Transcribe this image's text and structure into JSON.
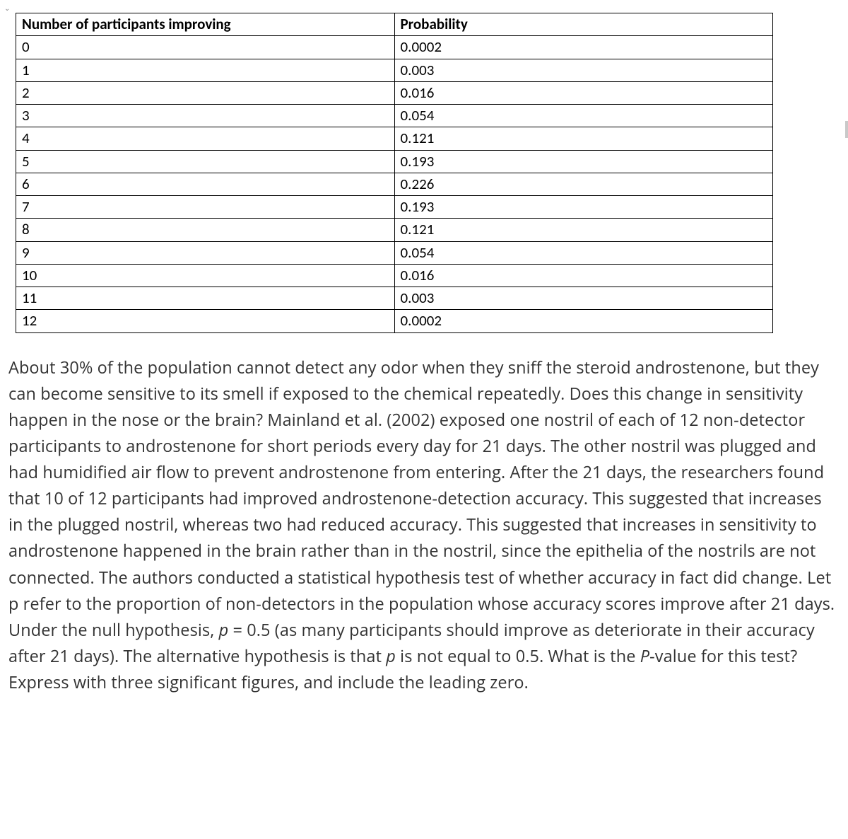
{
  "table": {
    "columns": [
      "Number of participants improving",
      "Probability"
    ],
    "rows": [
      [
        "0",
        "0.0002"
      ],
      [
        "1",
        "0.003"
      ],
      [
        "2",
        "0.016"
      ],
      [
        "3",
        "0.054"
      ],
      [
        "4",
        "0.121"
      ],
      [
        "5",
        "0.193"
      ],
      [
        "6",
        "0.226"
      ],
      [
        "7",
        "0.193"
      ],
      [
        "8",
        "0.121"
      ],
      [
        "9",
        "0.054"
      ],
      [
        "10",
        "0.016"
      ],
      [
        "11",
        "0.003"
      ],
      [
        "12",
        "0.0002"
      ]
    ],
    "border_color": "#000000",
    "header_font_weight": 700,
    "cell_font_size": 21,
    "column_widths": [
      "50%",
      "50%"
    ],
    "alignment": "left"
  },
  "paragraph": {
    "segments": [
      {
        "t": "About 30% of the population cannot detect any odor when they sniff the steroid androstenone, but they can become sensitive to its smell if exposed to the chemical repeatedly. Does this change in sensitivity happen in the nose or the brain? Mainland et al. (2002) exposed one nostril of each of 12 non-detector participants to androstenone for short periods every day for 21 days. The other nostril was plugged and had humidified air flow to prevent androstenone from entering. After the 21 days, the researchers found that 10 of 12 participants had improved androstenone-detection accuracy. This suggested that increases in the plugged nostril, whereas two had reduced accuracy. This suggested that increases in sensitivity to androstenone happened in the brain rather than in the nostril, since the epithelia of the nostrils are not connected. The authors conducted a statistical hypothesis test of whether accuracy in fact did change. Let p refer to the proportion of non-detectors in the population whose accuracy scores improve after 21 days. Under the null hypothesis, ",
        "i": false
      },
      {
        "t": "p",
        "i": true
      },
      {
        "t": " = 0.5 (as many participants should improve as deteriorate in their accuracy after 21 days). The alternative hypothesis is that ",
        "i": false
      },
      {
        "t": "p",
        "i": true
      },
      {
        "t": " is not equal to 0.5. What is the ",
        "i": false
      },
      {
        "t": "P",
        "i": true
      },
      {
        "t": "-value for this test? Express with three significant figures, and include the leading zero.",
        "i": false
      }
    ],
    "font_size": 23.5,
    "line_height": 1.58,
    "color": "#333333"
  },
  "colors": {
    "background": "#ffffff",
    "text": "#333333",
    "table_text": "#000000",
    "border": "#000000"
  }
}
